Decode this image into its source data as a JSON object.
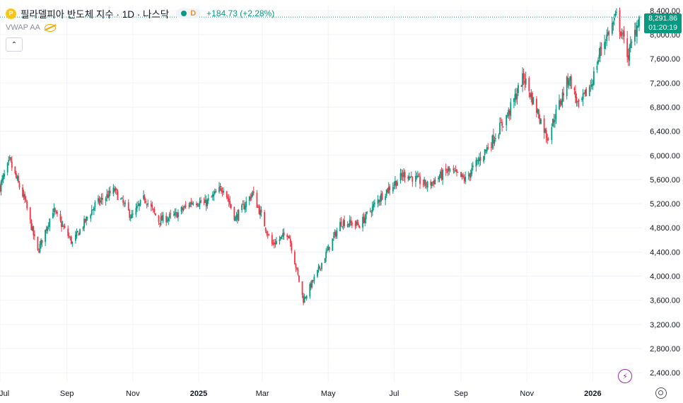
{
  "legend": {
    "logo_glyph": "P",
    "title": "필라델피아 반도체 지수 · 1D · 나스닥",
    "status_badge": "D",
    "change": "+184.73 (+2.28%)"
  },
  "indicator": {
    "label": "VWAP AA"
  },
  "collapse_glyph": "⌃",
  "price_tag": {
    "price": "8,291.86",
    "countdown": "01:20:19"
  },
  "flash_glyph": "⚡",
  "colors": {
    "up": "#089981",
    "down": "#f23645",
    "grid": "#f0f3fa",
    "axis_text": "#131722"
  },
  "chart_data": {
    "type": "candlestick",
    "y_axis_ticks": [
      8400,
      8000,
      7600,
      7200,
      6800,
      6400,
      6000,
      5600,
      5200,
      4800,
      4400,
      4000,
      3600,
      3200,
      2800,
      2400
    ],
    "y_tick_labels": [
      "8,400.00",
      "8,000.00",
      "7,600.00",
      "7,200.00",
      "6,800.00",
      "6,400.00",
      "6,000.00",
      "5,600.00",
      "5,200.00",
      "4,800.00",
      "4,400.00",
      "4,000.00",
      "3,600.00",
      "3,200.00",
      "2,800.00",
      "2,400.00"
    ],
    "ylim": [
      2250,
      8480
    ],
    "xlim": [
      "2024-07-01",
      "2026-02-13"
    ],
    "x_axis_ticks": [
      {
        "label": "Jul",
        "date": "2024-07-01",
        "bold": false
      },
      {
        "label": "Sep",
        "date": "2024-09-01",
        "bold": false
      },
      {
        "label": "Nov",
        "date": "2024-11-01",
        "bold": false
      },
      {
        "label": "2025",
        "date": "2025-01-01",
        "bold": true
      },
      {
        "label": "Mar",
        "date": "2025-03-01",
        "bold": false
      },
      {
        "label": "May",
        "date": "2025-05-01",
        "bold": false
      },
      {
        "label": "Jul",
        "date": "2025-07-01",
        "bold": false
      },
      {
        "label": "Sep",
        "date": "2025-09-01",
        "bold": false
      },
      {
        "label": "Nov",
        "date": "2025-11-01",
        "bold": false
      },
      {
        "label": "2026",
        "date": "2026-01-01",
        "bold": true
      }
    ],
    "last_price": 8291.86,
    "price_path": [
      [
        "2024-07-01",
        5480
      ],
      [
        "2024-07-10",
        5900
      ],
      [
        "2024-07-24",
        5250
      ],
      [
        "2024-08-05",
        4400
      ],
      [
        "2024-08-19",
        5100
      ],
      [
        "2024-09-06",
        4550
      ],
      [
        "2024-09-27",
        5180
      ],
      [
        "2024-10-15",
        5420
      ],
      [
        "2024-10-31",
        4980
      ],
      [
        "2024-11-12",
        5300
      ],
      [
        "2024-11-25",
        4920
      ],
      [
        "2024-12-10",
        5000
      ],
      [
        "2024-12-27",
        5250
      ],
      [
        "2025-01-07",
        5200
      ],
      [
        "2025-01-24",
        5480
      ],
      [
        "2025-02-04",
        4950
      ],
      [
        "2025-02-20",
        5380
      ],
      [
        "2025-03-10",
        4520
      ],
      [
        "2025-03-25",
        4720
      ],
      [
        "2025-04-08",
        3600
      ],
      [
        "2025-04-22",
        4100
      ],
      [
        "2025-05-01",
        4450
      ],
      [
        "2025-05-13",
        4900
      ],
      [
        "2025-05-30",
        4850
      ],
      [
        "2025-06-20",
        5350
      ],
      [
        "2025-07-11",
        5700
      ],
      [
        "2025-08-01",
        5500
      ],
      [
        "2025-08-20",
        5750
      ],
      [
        "2025-09-05",
        5600
      ],
      [
        "2025-09-30",
        6250
      ],
      [
        "2025-10-15",
        6700
      ],
      [
        "2025-10-29",
        7300
      ],
      [
        "2025-11-20",
        6300
      ],
      [
        "2025-12-10",
        7300
      ],
      [
        "2025-12-19",
        6800
      ],
      [
        "2025-12-31",
        7200
      ],
      [
        "2026-01-09",
        7800
      ],
      [
        "2026-01-23",
        8300
      ],
      [
        "2026-02-03",
        7650
      ],
      [
        "2026-02-13",
        8291.86
      ]
    ]
  }
}
